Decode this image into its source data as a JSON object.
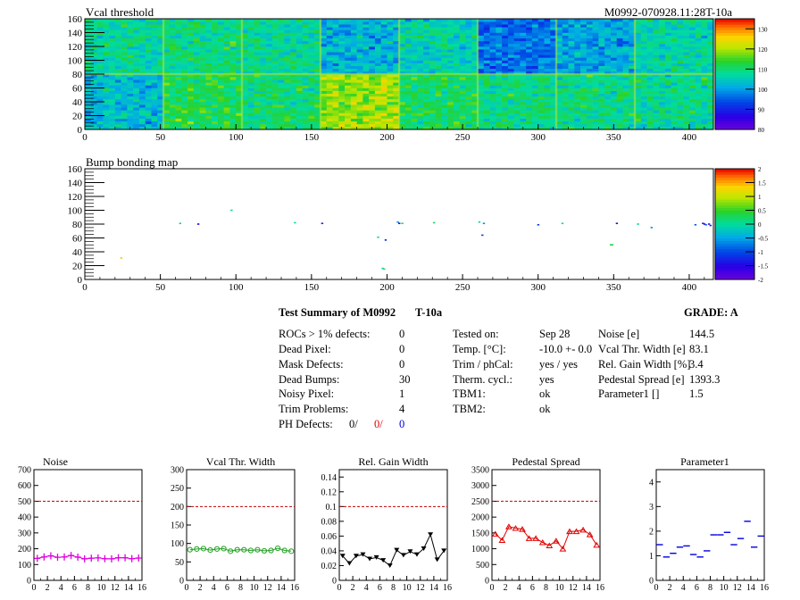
{
  "header": {
    "run_id": "M0992-070928.11:28T-10a"
  },
  "map1": {
    "title": "Vcal threshold",
    "x_range": [
      0,
      416
    ],
    "y_range": [
      0,
      160
    ],
    "x_ticks": [
      "0",
      "50",
      "100",
      "150",
      "200",
      "250",
      "300",
      "350",
      "400"
    ],
    "y_ticks": [
      "0",
      "20",
      "40",
      "60",
      "80",
      "100",
      "120",
      "140",
      "160"
    ],
    "z_range": [
      80,
      135
    ],
    "z_ticks": [
      "80",
      "90",
      "100",
      "110",
      "120",
      "130"
    ],
    "roc_means": {
      "top": [
        108,
        109,
        108,
        102,
        106,
        97,
        101,
        107
      ],
      "bottom": [
        103,
        112,
        110,
        119,
        111,
        109,
        109,
        108
      ]
    }
  },
  "map2": {
    "title": "Bump bonding map",
    "x_range": [
      0,
      416
    ],
    "y_range": [
      0,
      160
    ],
    "x_ticks": [
      "0",
      "50",
      "100",
      "150",
      "200",
      "250",
      "300",
      "350",
      "400"
    ],
    "y_ticks": [
      "0",
      "20",
      "40",
      "60",
      "80",
      "100",
      "120",
      "140",
      "160"
    ],
    "z_range": [
      -2,
      2
    ],
    "z_ticks": [
      "-2",
      "-1.5",
      "-1",
      "-0.5",
      "0",
      "0.5",
      "1",
      "1.5",
      "2"
    ],
    "points": [
      {
        "x": 24,
        "y": 31,
        "z": 1.4
      },
      {
        "x": 97,
        "y": 100,
        "z": 0.1
      },
      {
        "x": 157,
        "y": 81,
        "z": -1.8
      },
      {
        "x": 194,
        "y": 61,
        "z": 0.1
      },
      {
        "x": 197,
        "y": 16,
        "z": 0.1
      },
      {
        "x": 198,
        "y": 15,
        "z": 0.2
      },
      {
        "x": 199,
        "y": 57,
        "z": -1.2
      },
      {
        "x": 207,
        "y": 83,
        "z": -0.6
      },
      {
        "x": 208,
        "y": 81,
        "z": -1.4
      },
      {
        "x": 210,
        "y": 81,
        "z": 0.2
      },
      {
        "x": 261,
        "y": 83,
        "z": 0.1
      },
      {
        "x": 263,
        "y": 64,
        "z": -1.0
      },
      {
        "x": 264,
        "y": 81,
        "z": -0.6
      },
      {
        "x": 348,
        "y": 50,
        "z": 0.3
      },
      {
        "x": 349,
        "y": 50,
        "z": 0.4
      },
      {
        "x": 366,
        "y": 80,
        "z": 0.1
      },
      {
        "x": 375,
        "y": 75,
        "z": -0.6
      },
      {
        "x": 409,
        "y": 81,
        "z": -1.3
      },
      {
        "x": 410,
        "y": 80,
        "z": -1.5
      },
      {
        "x": 411,
        "y": 79,
        "z": -0.8
      },
      {
        "x": 413,
        "y": 80,
        "z": -1.7
      },
      {
        "x": 414,
        "y": 78,
        "z": -1.2
      },
      {
        "x": 231,
        "y": 82,
        "z": 0.2
      },
      {
        "x": 300,
        "y": 79,
        "z": -1.1
      },
      {
        "x": 316,
        "y": 81,
        "z": 0.1
      },
      {
        "x": 352,
        "y": 81,
        "z": -1.6
      },
      {
        "x": 404,
        "y": 79,
        "z": -0.9
      },
      {
        "x": 139,
        "y": 82,
        "z": 0.1
      },
      {
        "x": 75,
        "y": 80,
        "z": -1.5
      },
      {
        "x": 63,
        "y": 81,
        "z": 0.2
      }
    ]
  },
  "summary": {
    "title": "Test Summary of M0992",
    "title_suffix": "T-10a",
    "grade": "GRADE:  A",
    "left": [
      {
        "label": "ROCs > 1% defects:",
        "value": "0"
      },
      {
        "label": "Dead Pixel:",
        "value": "0"
      },
      {
        "label": "Mask Defects:",
        "value": "0"
      },
      {
        "label": "Dead Bumps:",
        "value": "30"
      },
      {
        "label": "Noisy Pixel:",
        "value": "1"
      },
      {
        "label": "Trim Problems:",
        "value": "4"
      }
    ],
    "ph_defects": {
      "label": "PH Defects:",
      "v1": "0/",
      "v2": "0/",
      "v3": "0"
    },
    "middle": [
      {
        "label": "Tested on:",
        "value": "Sep 28"
      },
      {
        "label": "Temp. [°C]:",
        "value": "-10.0 +- 0.0"
      },
      {
        "label": "Trim / phCal:",
        "value": "yes / yes"
      },
      {
        "label": "Therm. cycl.:",
        "value": "yes"
      },
      {
        "label": "TBM1:",
        "value": "ok"
      },
      {
        "label": "TBM2:",
        "value": "ok"
      }
    ],
    "right": [
      {
        "label": "Noise [e]",
        "value": "144.5"
      },
      {
        "label": "Vcal Thr. Width [e]",
        "value": "83.1"
      },
      {
        "label": "Rel. Gain Width [%]",
        "value": "3.4"
      },
      {
        "label": "Pedestal Spread [e]",
        "value": "1393.3"
      },
      {
        "label": "Parameter1 []",
        "value": "1.5"
      }
    ]
  },
  "chart_data": [
    {
      "type": "line",
      "title": "Noise",
      "color": "#e000e0",
      "marker": "cross",
      "x": [
        0,
        1,
        2,
        3,
        4,
        5,
        6,
        7,
        8,
        9,
        10,
        11,
        12,
        13,
        14,
        15
      ],
      "values": [
        139,
        148,
        155,
        146,
        148,
        157,
        147,
        136,
        140,
        142,
        137,
        136,
        143,
        143,
        137,
        141
      ],
      "xlim": [
        0,
        16
      ],
      "ylim": [
        0,
        700
      ],
      "cut": 500,
      "xticks": [
        "0",
        "2",
        "4",
        "6",
        "8",
        "10",
        "12",
        "14",
        "16"
      ],
      "yticks": [
        "0",
        "100",
        "200",
        "300",
        "400",
        "500",
        "600",
        "700"
      ]
    },
    {
      "type": "line",
      "title": "Vcal Thr. Width",
      "color": "#20a020",
      "marker": "circle",
      "x": [
        0,
        1,
        2,
        3,
        4,
        5,
        6,
        7,
        8,
        9,
        10,
        11,
        12,
        13,
        14,
        15
      ],
      "values": [
        83,
        85,
        86,
        82,
        85,
        86,
        79,
        83,
        83,
        81,
        83,
        80,
        81,
        87,
        81,
        79
      ],
      "xlim": [
        0,
        16
      ],
      "ylim": [
        0,
        300
      ],
      "cut": 200,
      "xticks": [
        "0",
        "2",
        "4",
        "6",
        "8",
        "10",
        "12",
        "14",
        "16"
      ],
      "yticks": [
        "0",
        "50",
        "100",
        "150",
        "200",
        "250",
        "300"
      ]
    },
    {
      "type": "line",
      "title": "Rel. Gain Width",
      "color": "#000000",
      "marker": "triangle-down",
      "x": [
        0,
        1,
        2,
        3,
        4,
        5,
        6,
        7,
        8,
        9,
        10,
        11,
        12,
        13,
        14,
        15
      ],
      "values": [
        0.033,
        0.023,
        0.033,
        0.035,
        0.029,
        0.031,
        0.027,
        0.02,
        0.041,
        0.034,
        0.039,
        0.035,
        0.043,
        0.062,
        0.028,
        0.04
      ],
      "xlim": [
        0,
        16
      ],
      "ylim": [
        0,
        0.15
      ],
      "cut": 0.1,
      "xticks": [
        "0",
        "2",
        "4",
        "6",
        "8",
        "10",
        "12",
        "14",
        "16"
      ],
      "yticks": [
        "0",
        "0.02",
        "0.04",
        "0.06",
        "0.08",
        "0.1",
        "0.12",
        "0.14"
      ]
    },
    {
      "type": "line",
      "title": "Pedestal Spread",
      "color": "#e00000",
      "marker": "triangle-up",
      "x": [
        0,
        1,
        2,
        3,
        4,
        5,
        6,
        7,
        8,
        9,
        10,
        11,
        12,
        13,
        14,
        15
      ],
      "values": [
        1470,
        1270,
        1700,
        1650,
        1620,
        1330,
        1330,
        1200,
        1100,
        1250,
        1000,
        1550,
        1550,
        1600,
        1450,
        1120
      ],
      "xlim": [
        0,
        16
      ],
      "ylim": [
        0,
        3500
      ],
      "cut": 2500,
      "xticks": [
        "0",
        "2",
        "4",
        "6",
        "8",
        "10",
        "12",
        "14",
        "16"
      ],
      "yticks": [
        "0",
        "500",
        "1000",
        "1500",
        "2000",
        "2500",
        "3000",
        "3500"
      ]
    },
    {
      "type": "scatter",
      "title": "Parameter1",
      "color": "#0000e0",
      "marker": "hbar",
      "x": [
        0,
        1,
        2,
        3,
        4,
        5,
        6,
        7,
        8,
        9,
        10,
        11,
        12,
        13,
        14,
        15
      ],
      "values": [
        1.45,
        0.95,
        1.1,
        1.35,
        1.4,
        1.05,
        0.95,
        1.2,
        1.85,
        1.85,
        1.95,
        1.45,
        1.7,
        2.4,
        1.35,
        1.8
      ],
      "xlim": [
        0,
        16
      ],
      "ylim": [
        0,
        4.5
      ],
      "xticks": [
        "0",
        "2",
        "4",
        "6",
        "8",
        "10",
        "12",
        "14",
        "16"
      ],
      "yticks": [
        "0",
        "1",
        "2",
        "3",
        "4"
      ]
    }
  ]
}
